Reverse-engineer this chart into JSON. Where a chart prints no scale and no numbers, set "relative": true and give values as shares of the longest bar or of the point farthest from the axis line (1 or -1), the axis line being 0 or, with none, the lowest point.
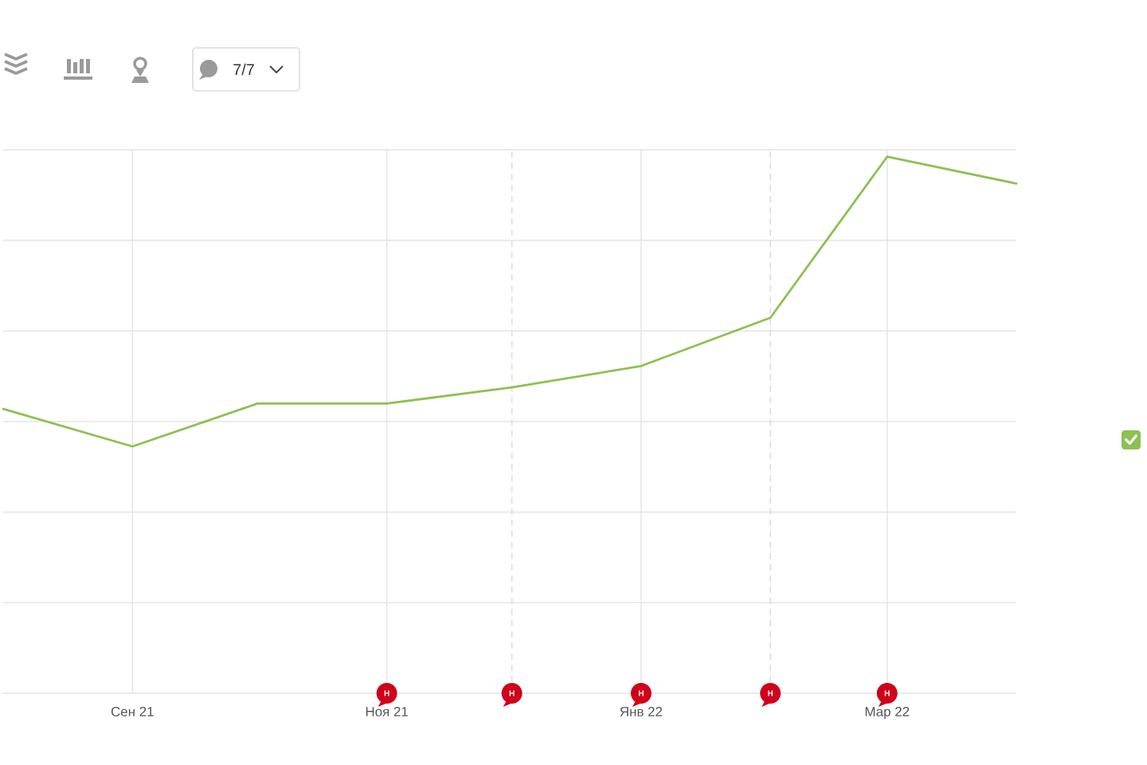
{
  "chart_data": {
    "type": "line",
    "relative": true,
    "x": [
      "2021-08",
      "2021-09",
      "2021-10",
      "2021-11",
      "2021-12",
      "2022-01",
      "2022-02",
      "2022-03",
      "2022-04"
    ],
    "series": [
      {
        "color": "#8cc152",
        "values": [
          0.53,
          0.46,
          0.54,
          0.54,
          0.57,
          0.61,
          0.7,
          1,
          0.95
        ]
      }
    ],
    "xlim": [
      "2021-08",
      "2022-04"
    ],
    "xticks": [
      {
        "value": "2021-09",
        "label": "Сен 21"
      },
      {
        "value": "2021-11",
        "label": "Ноя 21"
      },
      {
        "value": "2022-01",
        "label": "Янв 22"
      },
      {
        "value": "2022-03",
        "label": "Мар 22"
      }
    ],
    "grid": true,
    "marker": "none",
    "line_style": "solid",
    "ref_lines": [
      {
        "axis": "x",
        "value": "2021-12",
        "line_style": "dashed",
        "color": "#dddddd"
      },
      {
        "axis": "x",
        "value": "2022-02",
        "line_style": "dashed",
        "color": "#dddddd"
      }
    ],
    "annotations": [
      "7/7",
      {
        "text": "Н",
        "x": "2021-11",
        "y": 0
      },
      {
        "text": "Н",
        "x": "2021-12",
        "y": 0
      },
      {
        "text": "Н",
        "x": "2022-01",
        "y": 0
      },
      {
        "text": "Н",
        "x": "2022-02",
        "y": 0
      },
      {
        "text": "Н",
        "x": "2022-03",
        "y": 0
      }
    ]
  }
}
